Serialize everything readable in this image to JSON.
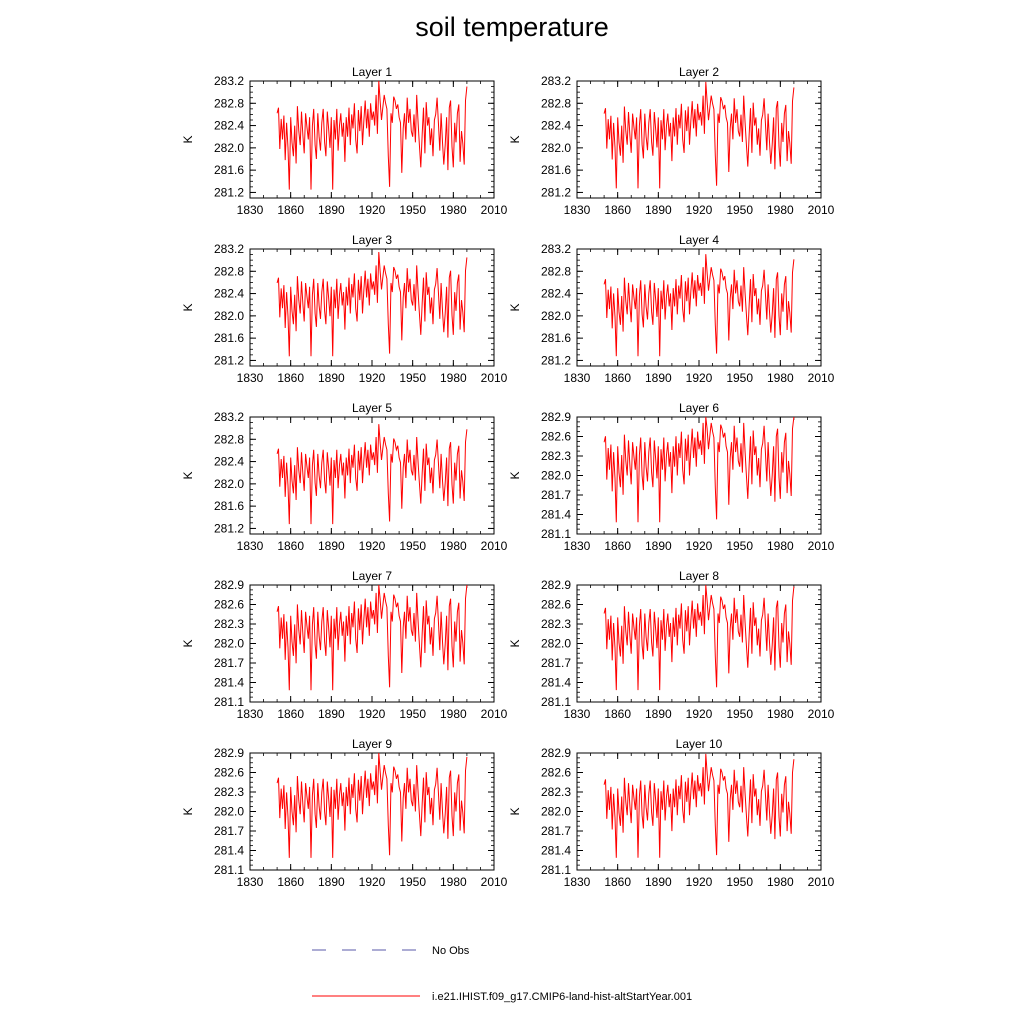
{
  "title": "soil temperature",
  "legend": [
    {
      "label": "No Obs",
      "color": "#5a5aa8",
      "style": "dashed"
    },
    {
      "label": "i.e21.IHIST.f09_g17.CMIP6-land-hist-altStartYear.001",
      "color": "#ff0000",
      "style": "solid"
    }
  ],
  "chart_data": [
    {
      "type": "line",
      "title": "Layer 1",
      "ylabel": "K",
      "xlim": [
        1830,
        2010
      ],
      "ylim": [
        281.1,
        283.2
      ],
      "xticks": [
        1830,
        1860,
        1890,
        1920,
        1950,
        1980,
        2010
      ],
      "yticks": [
        "281.2",
        "281.6",
        "282.0",
        "282.4",
        "282.8",
        "283.2"
      ],
      "offset": 0.0,
      "amp": 1.0
    },
    {
      "type": "line",
      "title": "Layer 2",
      "ylabel": "K",
      "xlim": [
        1830,
        2010
      ],
      "ylim": [
        281.1,
        283.2
      ],
      "xticks": [
        1830,
        1860,
        1890,
        1920,
        1950,
        1980,
        2010
      ],
      "yticks": [
        "281.2",
        "281.6",
        "282.0",
        "282.4",
        "282.8",
        "283.2"
      ],
      "offset": 0.0,
      "amp": 0.98
    },
    {
      "type": "line",
      "title": "Layer 3",
      "ylabel": "K",
      "xlim": [
        1830,
        2010
      ],
      "ylim": [
        281.1,
        283.2
      ],
      "xticks": [
        1830,
        1860,
        1890,
        1920,
        1950,
        1980,
        2010
      ],
      "yticks": [
        "281.2",
        "281.6",
        "282.0",
        "282.4",
        "282.8",
        "283.2"
      ],
      "offset": -0.02,
      "amp": 0.96
    },
    {
      "type": "line",
      "title": "Layer 4",
      "ylabel": "K",
      "xlim": [
        1830,
        2010
      ],
      "ylim": [
        281.1,
        283.2
      ],
      "xticks": [
        1830,
        1860,
        1890,
        1920,
        1950,
        1980,
        2010
      ],
      "yticks": [
        "281.2",
        "281.6",
        "282.0",
        "282.4",
        "282.8",
        "283.2"
      ],
      "offset": -0.04,
      "amp": 0.94
    },
    {
      "type": "line",
      "title": "Layer 5",
      "ylabel": "K",
      "xlim": [
        1830,
        2010
      ],
      "ylim": [
        281.1,
        283.2
      ],
      "xticks": [
        1830,
        1860,
        1890,
        1920,
        1950,
        1980,
        2010
      ],
      "yticks": [
        "281.2",
        "281.6",
        "282.0",
        "282.4",
        "282.8",
        "283.2"
      ],
      "offset": -0.06,
      "amp": 0.92
    },
    {
      "type": "line",
      "title": "Layer 6",
      "ylabel": "K",
      "xlim": [
        1830,
        2010
      ],
      "ylim": [
        281.1,
        282.9
      ],
      "xticks": [
        1830,
        1860,
        1890,
        1920,
        1950,
        1980,
        2010
      ],
      "yticks": [
        "281.1",
        "281.4",
        "281.7",
        "282.0",
        "282.3",
        "282.6",
        "282.9"
      ],
      "offset": -0.08,
      "amp": 0.9
    },
    {
      "type": "line",
      "title": "Layer 7",
      "ylabel": "K",
      "xlim": [
        1830,
        2010
      ],
      "ylim": [
        281.1,
        282.9
      ],
      "xticks": [
        1830,
        1860,
        1890,
        1920,
        1950,
        1980,
        2010
      ],
      "yticks": [
        "281.1",
        "281.4",
        "281.7",
        "282.0",
        "282.3",
        "282.6",
        "282.9"
      ],
      "offset": -0.1,
      "amp": 0.88
    },
    {
      "type": "line",
      "title": "Layer 8",
      "ylabel": "K",
      "xlim": [
        1830,
        2010
      ],
      "ylim": [
        281.1,
        282.9
      ],
      "xticks": [
        1830,
        1860,
        1890,
        1920,
        1950,
        1980,
        2010
      ],
      "yticks": [
        "281.1",
        "281.4",
        "281.7",
        "282.0",
        "282.3",
        "282.6",
        "282.9"
      ],
      "offset": -0.12,
      "amp": 0.86
    },
    {
      "type": "line",
      "title": "Layer 9",
      "ylabel": "K",
      "xlim": [
        1830,
        2010
      ],
      "ylim": [
        281.1,
        282.9
      ],
      "xticks": [
        1830,
        1860,
        1890,
        1920,
        1950,
        1980,
        2010
      ],
      "yticks": [
        "281.1",
        "281.4",
        "281.7",
        "282.0",
        "282.3",
        "282.6",
        "282.9"
      ],
      "offset": -0.14,
      "amp": 0.84
    },
    {
      "type": "line",
      "title": "Layer 10",
      "ylabel": "K",
      "xlim": [
        1830,
        2010
      ],
      "ylim": [
        281.1,
        282.9
      ],
      "xticks": [
        1830,
        1860,
        1890,
        1920,
        1950,
        1980,
        2010
      ],
      "yticks": [
        "281.1",
        "281.4",
        "281.7",
        "282.0",
        "282.3",
        "282.6",
        "282.9"
      ],
      "offset": -0.16,
      "amp": 0.82
    }
  ],
  "series_base": {
    "name": "i.e21.IHIST.f09_g17.CMIP6-land-hist-altStartYear.001",
    "color": "#ff0000",
    "x_start": 1850,
    "x_step": 1,
    "values": [
      282.62,
      282.72,
      281.98,
      282.52,
      282.15,
      282.58,
      281.78,
      282.45,
      282.0,
      281.25,
      282.55,
      282.1,
      281.85,
      282.4,
      281.72,
      282.75,
      282.3,
      282.05,
      282.65,
      282.22,
      281.9,
      282.62,
      282.38,
      282.15,
      282.55,
      281.25,
      282.4,
      282.7,
      282.05,
      281.8,
      282.62,
      282.2,
      281.95,
      282.45,
      282.7,
      282.1,
      281.85,
      282.65,
      282.35,
      282.0,
      282.55,
      281.25,
      282.5,
      282.15,
      282.7,
      281.95,
      282.4,
      282.62,
      282.2,
      282.45,
      281.75,
      282.55,
      282.2,
      282.72,
      282.05,
      282.6,
      282.35,
      282.8,
      282.15,
      281.9,
      282.68,
      282.3,
      282.75,
      282.05,
      282.5,
      282.85,
      282.35,
      282.7,
      282.2,
      282.8,
      282.5,
      282.65,
      282.4,
      282.95,
      282.25,
      283.2,
      282.85,
      282.5,
      282.72,
      282.95,
      282.8,
      282.7,
      281.85,
      281.3,
      282.62,
      282.45,
      282.92,
      282.85,
      282.7,
      282.78,
      282.55,
      282.45,
      281.55,
      282.35,
      282.62,
      282.15,
      282.9,
      282.45,
      282.7,
      282.3,
      282.2,
      282.6,
      282.1,
      282.95,
      282.45,
      282.05,
      281.65,
      282.25,
      282.72,
      281.9,
      282.82,
      282.4,
      282.55,
      282.05,
      282.35,
      281.85,
      282.5,
      282.6,
      282.9,
      282.45,
      281.95,
      282.62,
      282.1,
      281.7,
      282.05,
      282.55,
      281.6,
      282.72,
      282.85,
      282.02,
      281.65,
      282.45,
      282.1,
      282.62,
      282.78,
      281.75,
      282.3,
      282.08,
      281.7,
      282.85,
      283.1
    ]
  }
}
